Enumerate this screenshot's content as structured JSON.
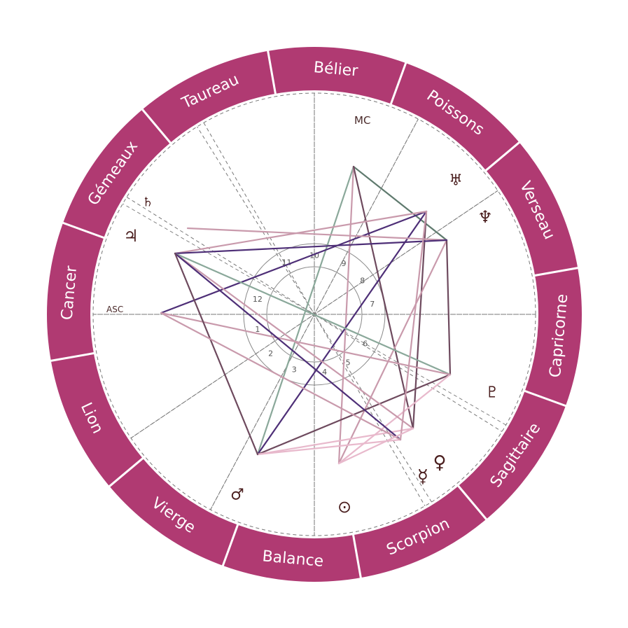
{
  "colors": {
    "ring": "#b03a72",
    "ring_separator": "#ffffff",
    "background": "#ffffff",
    "dashed": "#777777",
    "inner_circle": "#888888",
    "symbol": "#4a1e1e",
    "aspect_palette": [
      "#8aa89a",
      "#4e2f77",
      "#c99aac",
      "#6e4a5e",
      "#e8b9cc",
      "#5f7a6e"
    ]
  },
  "signs": [
    "Bélier",
    "Poissons",
    "Verseau",
    "Capricorne",
    "Sagittaire",
    "Scorpion",
    "Balance",
    "Vierge",
    "Lion",
    "Cancer",
    "Gémeaux",
    "Taureau"
  ],
  "house_numbers": [
    "1",
    "2",
    "3",
    "4",
    "5",
    "6",
    "7",
    "8",
    "9",
    "10",
    "11",
    "12"
  ],
  "axes": {
    "asc_label": "ASC",
    "mc_label": "MC"
  },
  "planets": [
    {
      "name": "saturn",
      "glyph": "♄"
    },
    {
      "name": "jupiter",
      "glyph": "♃"
    },
    {
      "name": "uranus",
      "glyph": "♅"
    },
    {
      "name": "neptune",
      "glyph": "♆"
    },
    {
      "name": "pluto",
      "glyph": "♇"
    },
    {
      "name": "venus",
      "glyph": "♀"
    },
    {
      "name": "mercury",
      "glyph": "☿"
    },
    {
      "name": "sun",
      "glyph": "⊙"
    },
    {
      "name": "mars",
      "glyph": "♂"
    }
  ]
}
